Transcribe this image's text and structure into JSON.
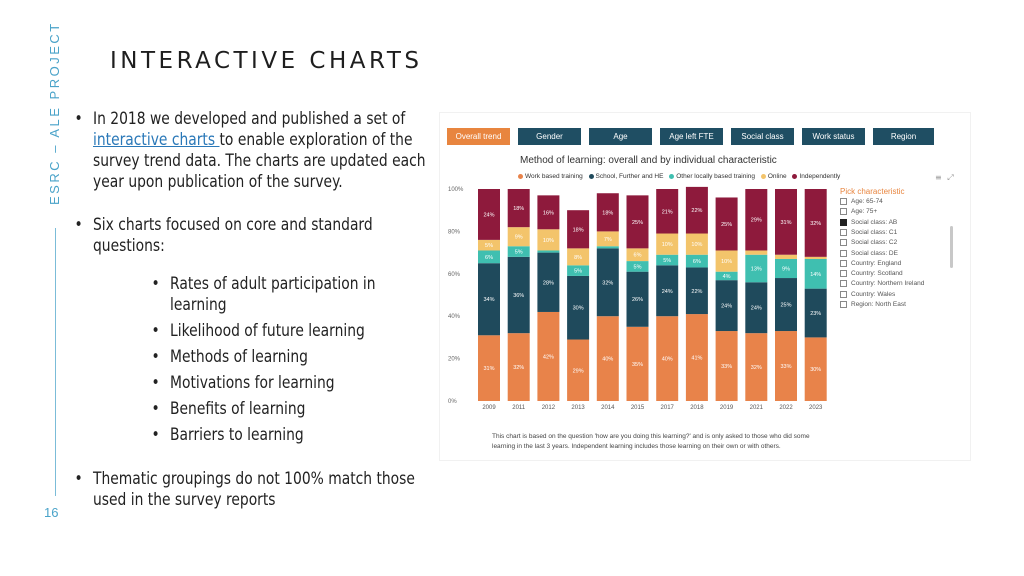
{
  "slide": {
    "side_label": "ESRC – ALE PROJECT",
    "page_number": "16",
    "title": "INTERACTIVE CHARTS",
    "bullet1_pre": "In 2018 we developed and published a set of ",
    "bullet1_link": "interactive charts ",
    "bullet1_post": "to enable exploration of the survey trend data. The charts are updated each year upon publication of the survey.",
    "bullet2": "Six charts focused on core and standard questions:",
    "sub_items": [
      "Rates of adult participation in learning",
      "Likelihood of future learning",
      "Methods of learning",
      "Motivations for learning",
      "Benefits of learning",
      "Barriers to learning"
    ],
    "bullet3": "Thematic groupings do not 100% match those used in the survey reports"
  },
  "chart_ui": {
    "tabs": [
      "Overall trend",
      "Gender",
      "Age",
      "Age left FTE",
      "Social class",
      "Work status",
      "Region"
    ],
    "active_tab": 0,
    "pick_title": "Pick characteristic",
    "pick_items": [
      {
        "label": "Age: 65-74",
        "checked": false
      },
      {
        "label": "Age: 75+",
        "checked": false
      },
      {
        "label": "Social class: AB",
        "checked": true
      },
      {
        "label": "Social class: C1",
        "checked": false
      },
      {
        "label": "Social class: C2",
        "checked": false
      },
      {
        "label": "Social class: DE",
        "checked": false
      },
      {
        "label": "Country: England",
        "checked": false
      },
      {
        "label": "Country: Scotland",
        "checked": false
      },
      {
        "label": "Country: Northern Ireland",
        "checked": false
      },
      {
        "label": "Country: Wales",
        "checked": false
      },
      {
        "label": "Region: North East",
        "checked": false
      }
    ],
    "footnote": "This chart is based on the question 'how are you doing this learning?' and is only asked to those who did some learning in the last 3 years. Independent learning includes those learning on their own or with others."
  },
  "chart_data": {
    "type": "bar",
    "stacked": true,
    "title": "Method of learning: overall and by individual characteristic",
    "categories": [
      "2009",
      "2011",
      "2012",
      "2013",
      "2014",
      "2015",
      "2017",
      "2018",
      "2019",
      "2021",
      "2022",
      "2023"
    ],
    "y_ticks": [
      "0%",
      "20%",
      "40%",
      "60%",
      "80%",
      "100%"
    ],
    "ylim": [
      0,
      100
    ],
    "legend_position": "top",
    "series": [
      {
        "name": "Work based training",
        "color": "#e8834a",
        "values": [
          31,
          32,
          42,
          29,
          40,
          35,
          40,
          41,
          33,
          32,
          33,
          30
        ],
        "labels": [
          "31%",
          "32%",
          "42%",
          "29%",
          "40%",
          "35%",
          "40%",
          "41%",
          "33%",
          "32%",
          "33%",
          "30%"
        ]
      },
      {
        "name": "School, Further and HE",
        "color": "#1f4a5c",
        "values": [
          34,
          36,
          28,
          30,
          32,
          26,
          24,
          22,
          24,
          24,
          25,
          23
        ],
        "labels": [
          "34%",
          "36%",
          "28%",
          "30%",
          "32%",
          "26%",
          "24%",
          "22%",
          "24%",
          "24%",
          "25%",
          "23%"
        ]
      },
      {
        "name": "Other locally based training",
        "color": "#3fbfb0",
        "values": [
          6,
          5,
          1,
          5,
          1,
          5,
          5,
          6,
          4,
          13,
          9,
          14
        ],
        "labels": [
          "6%",
          "5%",
          "",
          "5%",
          "",
          "5%",
          "5%",
          "6%",
          "4%",
          "13%",
          "9%",
          "14%"
        ]
      },
      {
        "name": "Online",
        "color": "#f3c46b",
        "values": [
          5,
          9,
          10,
          8,
          7,
          6,
          10,
          10,
          10,
          2,
          2,
          1
        ],
        "labels": [
          "5%",
          "9%",
          "10%",
          "8%",
          "7%",
          "6%",
          "10%",
          "10%",
          "10%",
          "",
          "",
          ""
        ]
      },
      {
        "name": "Independently",
        "color": "#8e1a3c",
        "values": [
          24,
          18,
          16,
          18,
          18,
          25,
          21,
          22,
          25,
          29,
          31,
          32
        ],
        "labels": [
          "24%",
          "18%",
          "16%",
          "18%",
          "18%",
          "25%",
          "21%",
          "22%",
          "25%",
          "29%",
          "31%",
          "32%"
        ]
      }
    ]
  }
}
